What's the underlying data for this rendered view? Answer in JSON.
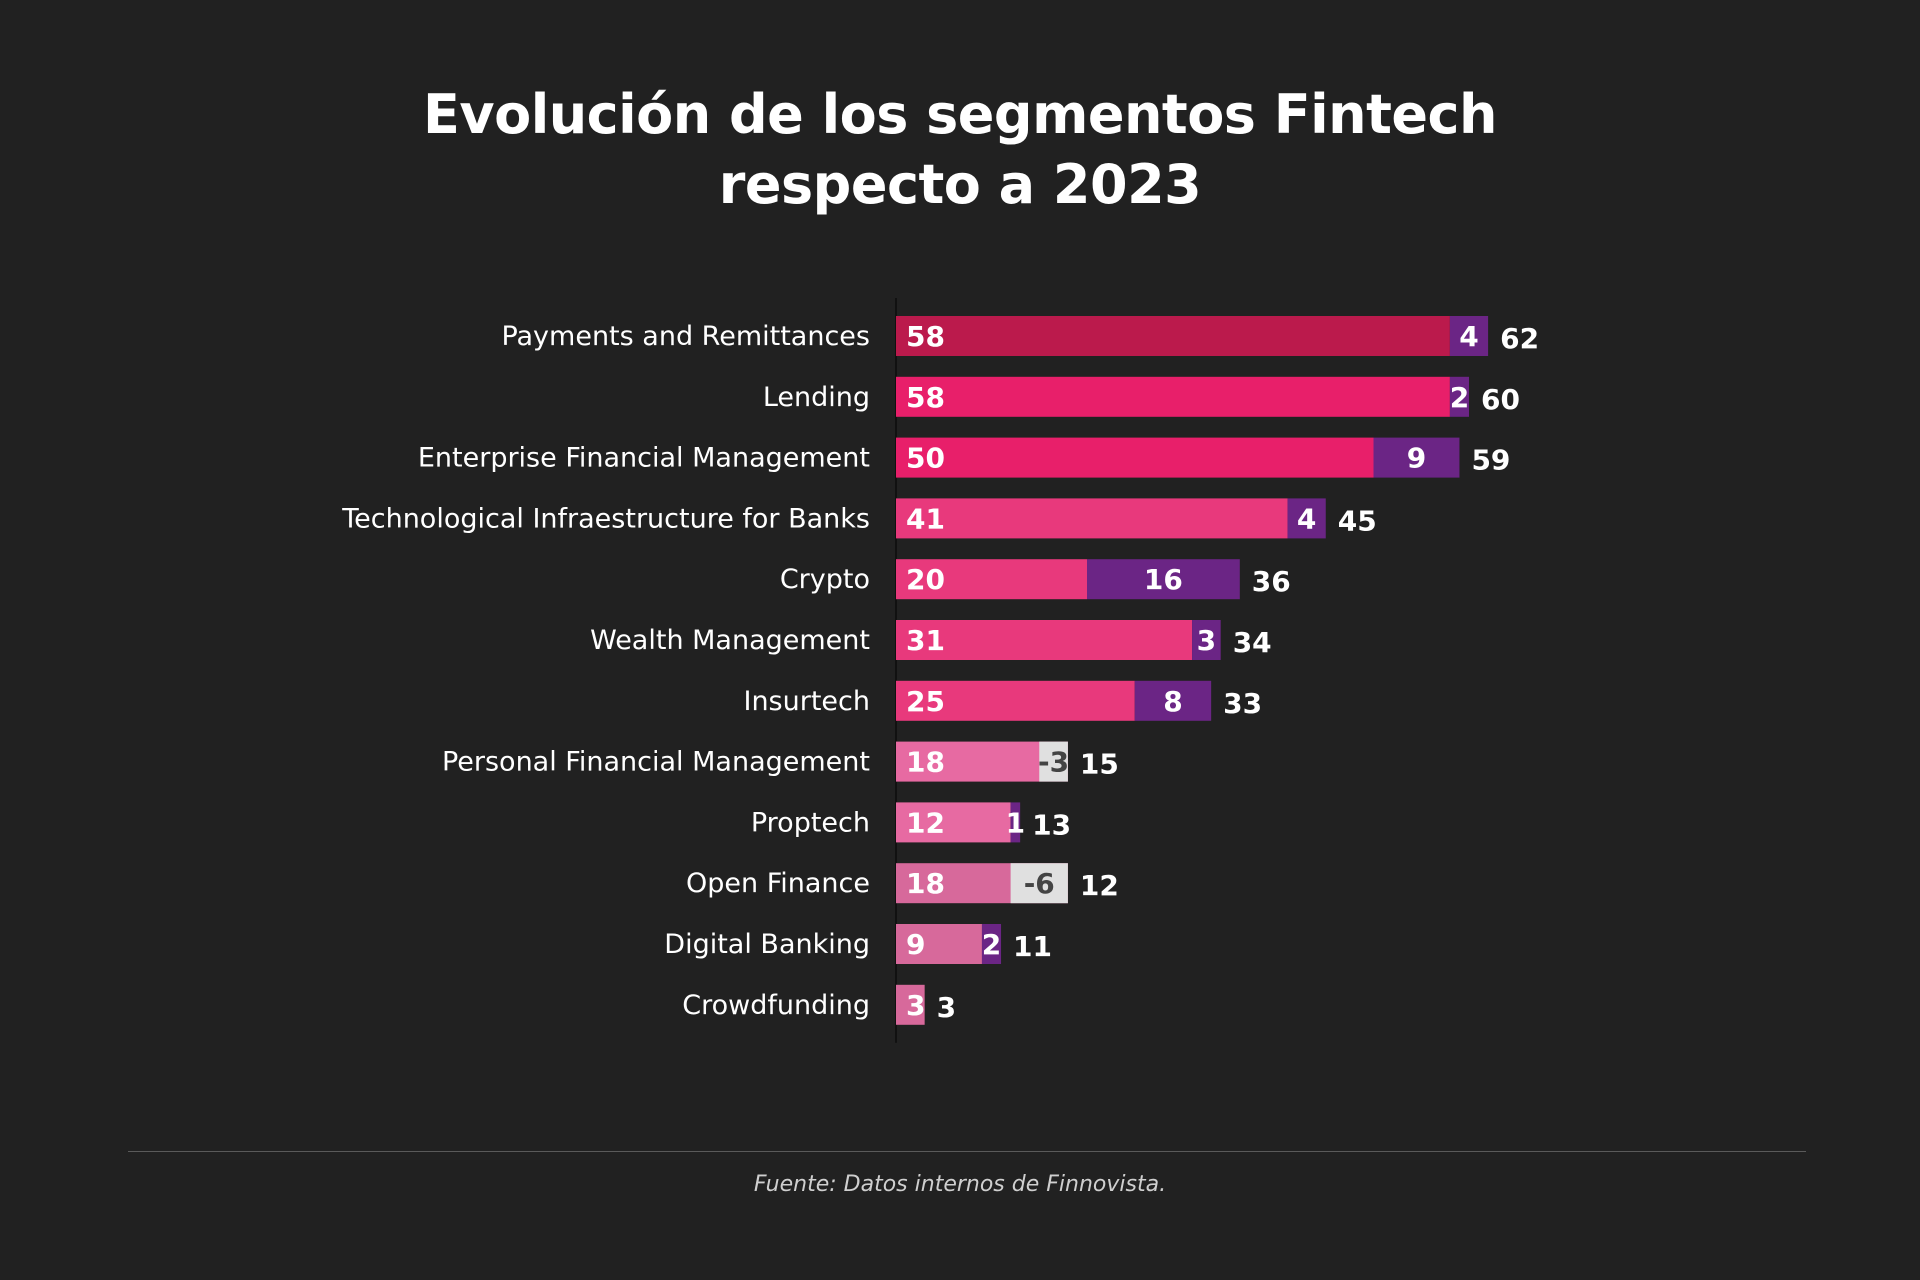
{
  "title_line1": "Evolución de los segmentos Fintech",
  "title_line2": "respecto a 2023",
  "source": "Fuente: Datos internos de Finnovista.",
  "colors": {
    "background": "#212121",
    "base_bar_shades": [
      "#bb1a4c",
      "#e81f6a",
      "#e81f6a",
      "#e8397c",
      "#e8397c",
      "#e8397c",
      "#e8397c",
      "#e76aa2",
      "#e76aa2",
      "#d7699b",
      "#d7699b",
      "#d7699b"
    ],
    "positive_change": "#6b2585",
    "negative_change": "#e0e0e0",
    "negative_change_text": "#444444",
    "label_text": "#ffffff",
    "axis": "#111111"
  },
  "chart_data": {
    "type": "bar",
    "orientation": "horizontal",
    "stacked": true,
    "title": "Evolución de los segmentos Fintech respecto a 2023",
    "categories": [
      "Payments and Remittances",
      "Lending",
      "Enterprise Financial Management",
      "Technological Infraestructure for Banks",
      "Crypto",
      "Wealth Management",
      "Insurtech",
      "Personal Financial Management",
      "Proptech",
      "Open Finance",
      "Digital Banking",
      "Crowdfunding"
    ],
    "base_values": [
      58,
      58,
      50,
      41,
      20,
      31,
      25,
      18,
      12,
      18,
      9,
      3
    ],
    "change_values": [
      4,
      2,
      9,
      4,
      16,
      3,
      8,
      -3,
      1,
      -6,
      2,
      null
    ],
    "totals": [
      62,
      60,
      59,
      45,
      36,
      34,
      33,
      15,
      13,
      12,
      11,
      3
    ],
    "xlim": [
      0,
      62
    ],
    "legend": "none",
    "grid": false
  }
}
